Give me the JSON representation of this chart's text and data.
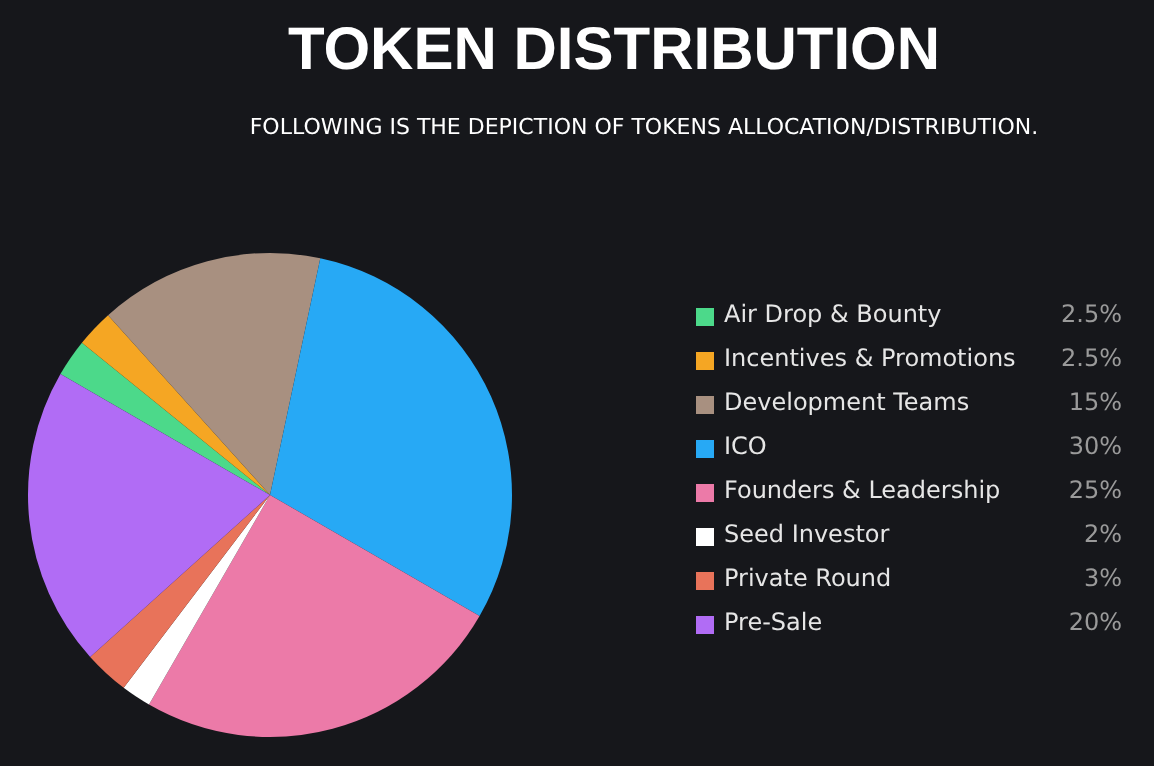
{
  "chart_data": {
    "type": "pie",
    "title": "TOKEN DISTRIBUTION",
    "subtitle": "FOLLOWING IS THE DEPICTION OF TOKENS ALLOCATION/DISTRIBUTION.",
    "categories": [
      "Air Drop & Bounty",
      "Incentives & Promotions",
      "Development Teams",
      "ICO",
      "Founders & Leadership",
      "Seed Investor",
      "Private Round",
      "Pre-Sale"
    ],
    "values": [
      2.5,
      2.5,
      15,
      30,
      25,
      2,
      3,
      20
    ],
    "colors": [
      "#4cd98a",
      "#f5a623",
      "#a89080",
      "#27a9f5",
      "#ec7aa8",
      "#ffffff",
      "#e8735a",
      "#b16cf5"
    ],
    "value_labels": [
      "2.5%",
      "2.5%",
      "15%",
      "30%",
      "25%",
      "2%",
      "3%",
      "20%"
    ],
    "legend": "right"
  }
}
